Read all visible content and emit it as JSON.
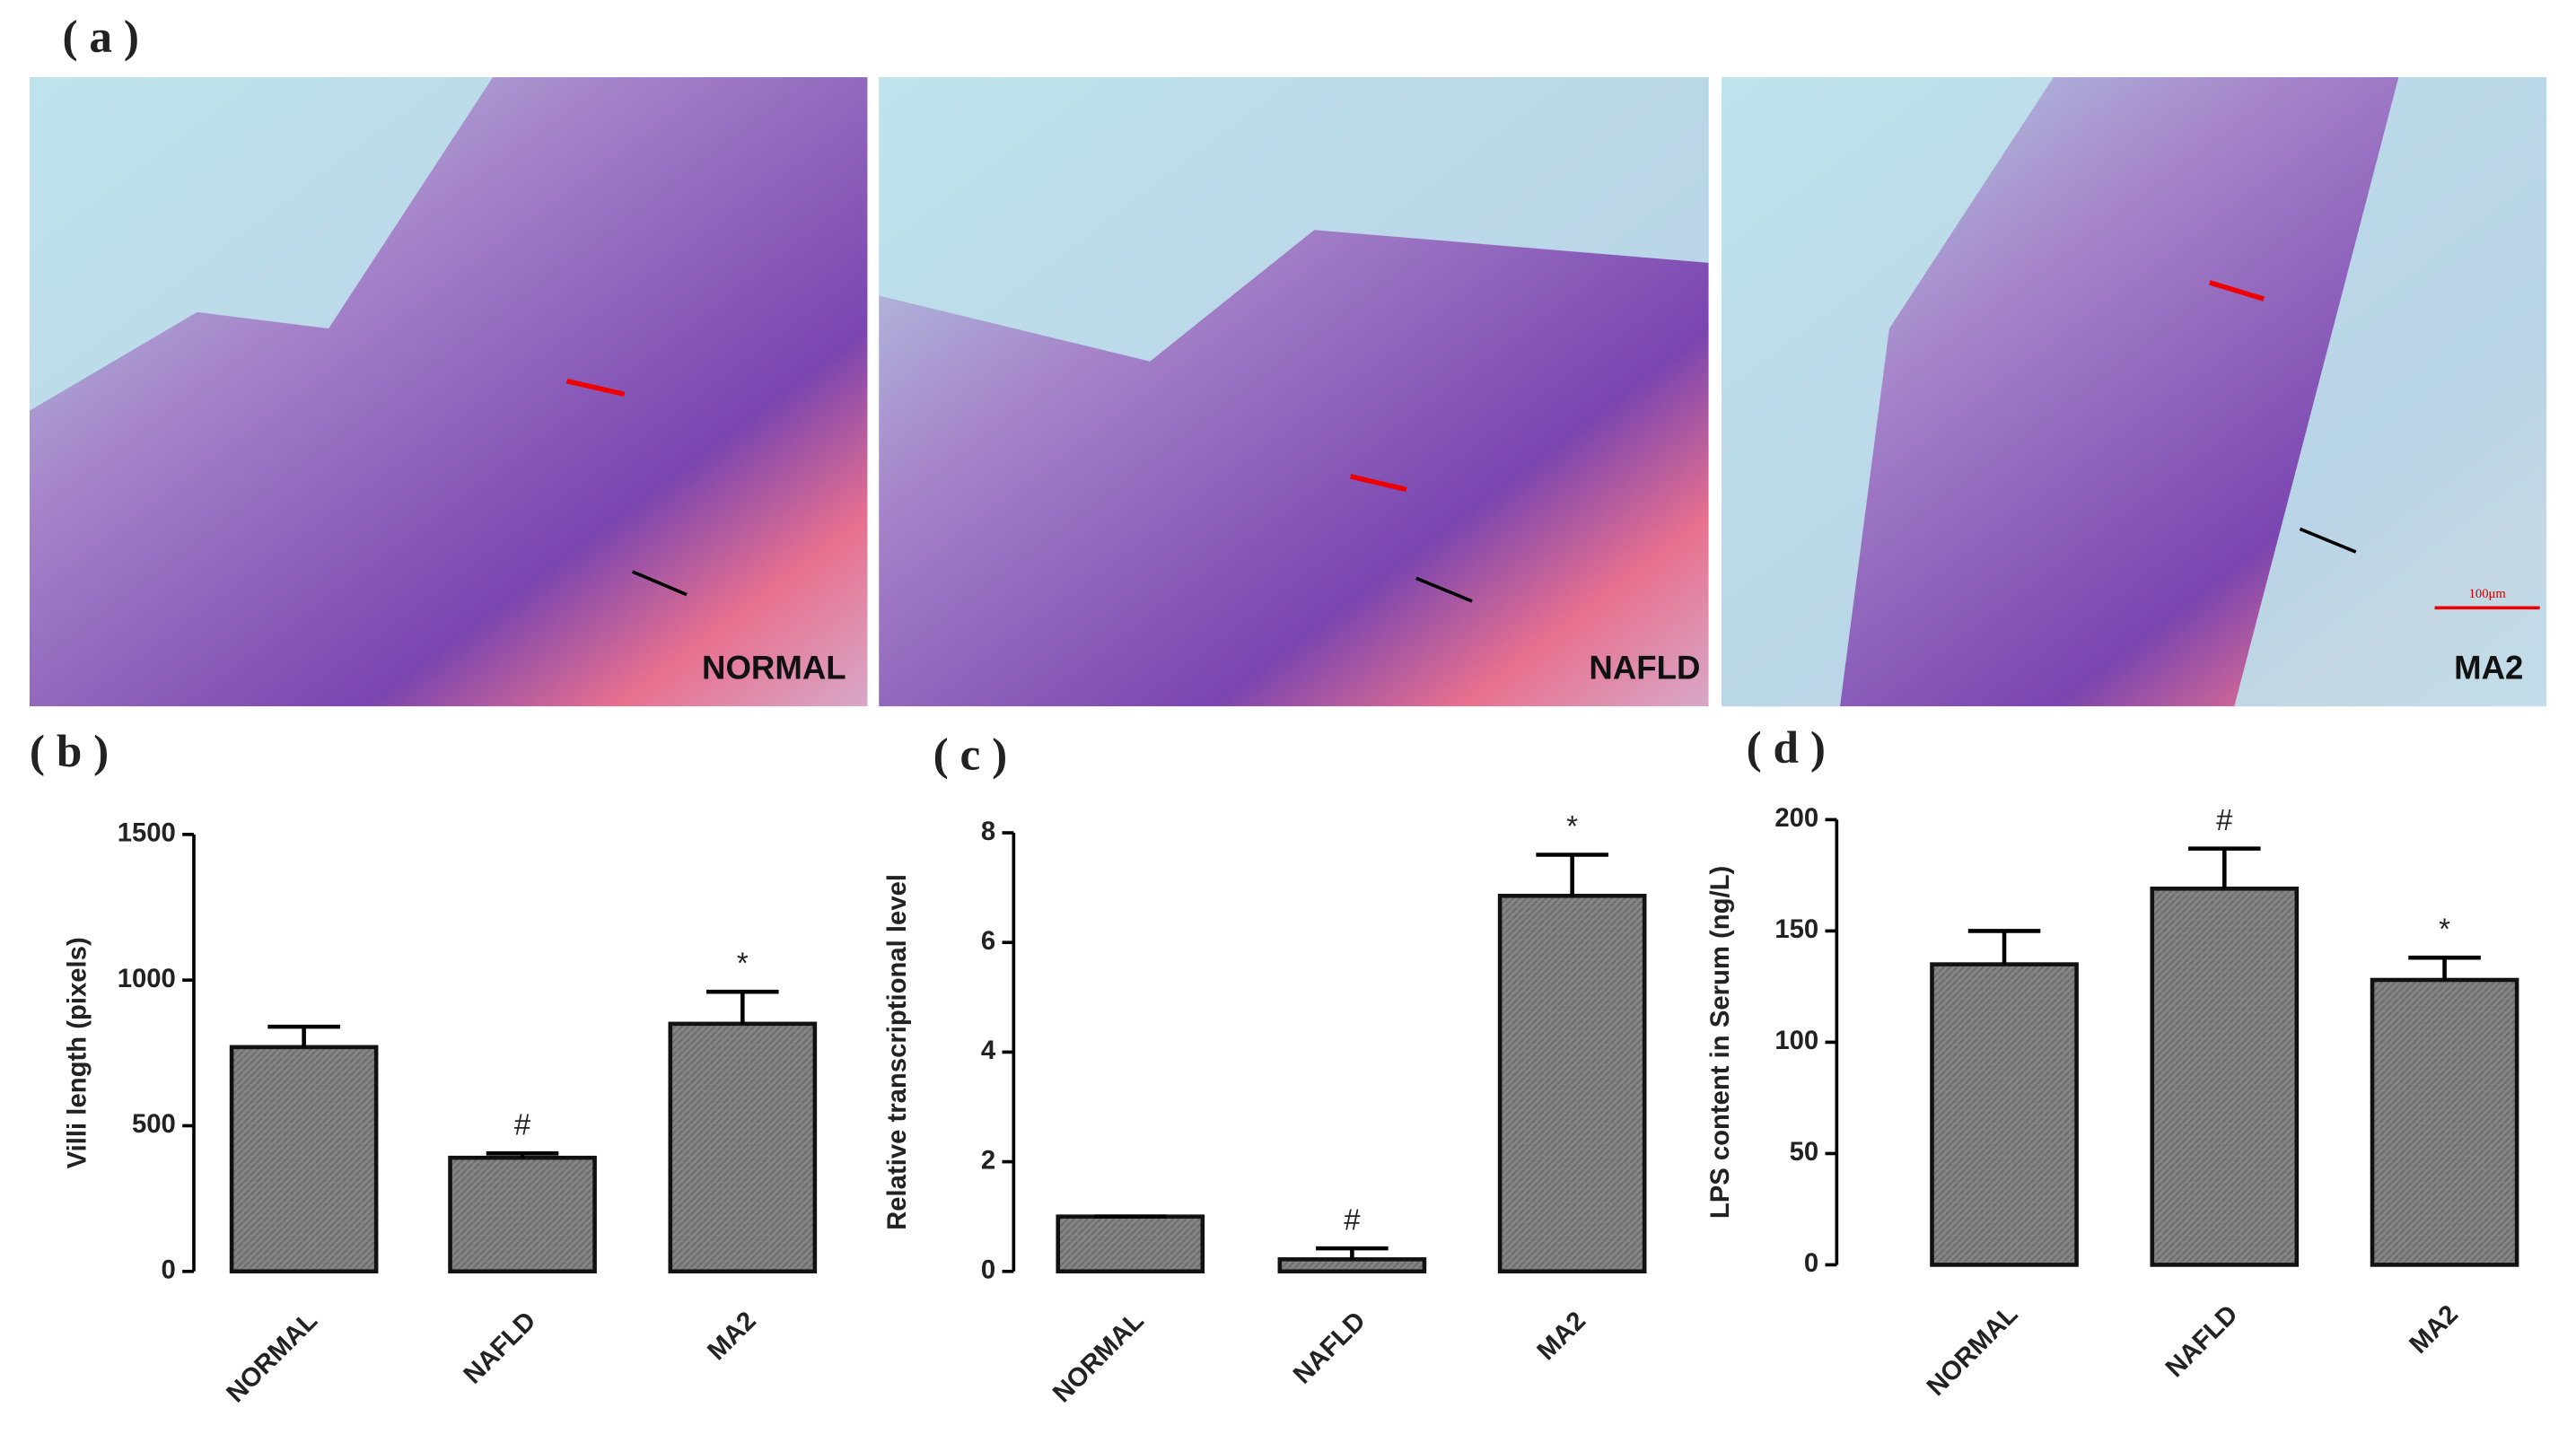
{
  "micrographs": {
    "panel_label": "( a )",
    "images": [
      "NORMAL",
      "NAFLD",
      "MA2"
    ],
    "scale_bar": "100μm"
  },
  "chart_data": [
    {
      "type": "bar",
      "panel_label": "( b )",
      "y_label": "Villi length (pixels)",
      "categories": [
        "NORMAL",
        "NAFLD",
        "MA2"
      ],
      "values": [
        770,
        390,
        850
      ],
      "errors": [
        70,
        15,
        110
      ],
      "value_annotations": [
        null,
        "#",
        "*"
      ],
      "color": "#7f7f7f",
      "ylim": [
        0,
        1500
      ],
      "yticks": [
        0,
        500,
        1000,
        1500
      ]
    },
    {
      "type": "bar",
      "panel_label": "( c )",
      "y_label": "Relative transcriptional level",
      "categories": [
        "NORMAL",
        "NAFLD",
        "MA2"
      ],
      "values": [
        1.0,
        0.22,
        6.85
      ],
      "errors": [
        0,
        0.2,
        0.75
      ],
      "value_annotations": [
        null,
        "#",
        "*"
      ],
      "color": "#7f7f7f",
      "ylim": [
        0,
        8
      ],
      "yticks": [
        0,
        2,
        4,
        6,
        8
      ]
    },
    {
      "type": "bar",
      "panel_label": "( d )",
      "y_label": "LPS content in Serum (ng/L)",
      "categories": [
        "NORMAL",
        "NAFLD",
        "MA2"
      ],
      "values": [
        135,
        169,
        128
      ],
      "errors": [
        15,
        18,
        10
      ],
      "value_annotations": [
        null,
        "#",
        "*"
      ],
      "color": "#7f7f7f",
      "ylim": [
        0,
        200
      ],
      "yticks": [
        0,
        50,
        100,
        150,
        200
      ]
    }
  ]
}
